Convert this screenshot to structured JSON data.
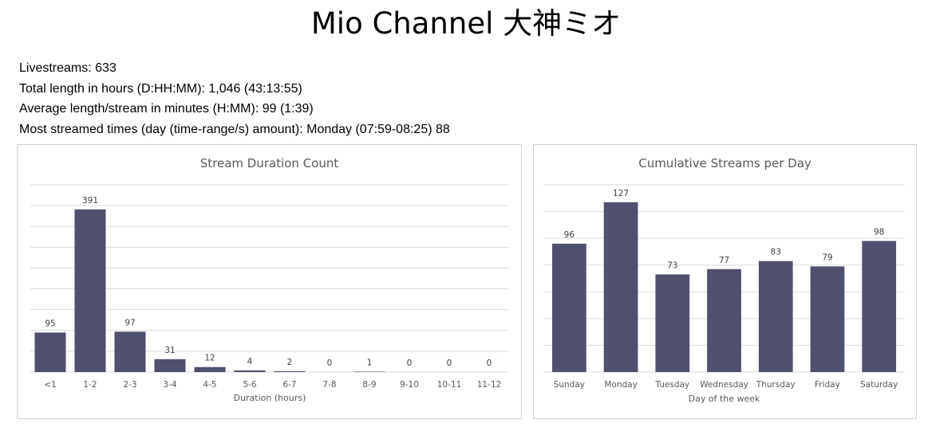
{
  "page": {
    "title": "Mio Channel 大神ミオ"
  },
  "stats": {
    "livestreams": "Livestreams: 633",
    "total_length": "Total length in hours (D:HH:MM): 1,046 (43:13:55)",
    "average_length": "Average length/stream in minutes (H:MM): 99 (1:39)",
    "most_streamed": "Most streamed times (day (time-range/s) amount): Monday (07:59-08:25) 88"
  },
  "colors": {
    "bar": "#4f4f6f",
    "grid": "#d9d9d9",
    "text": "#595959"
  },
  "chart_data": [
    {
      "type": "bar",
      "title": "Stream Duration Count",
      "xlabel": "Duration (hours)",
      "ylabel": "",
      "categories": [
        "<1",
        "1-2",
        "2-3",
        "3-4",
        "4-5",
        "5-6",
        "6-7",
        "7-8",
        "8-9",
        "9-10",
        "10-11",
        "11-12"
      ],
      "values": [
        95,
        391,
        97,
        31,
        12,
        4,
        2,
        0,
        1,
        0,
        0,
        0
      ],
      "ylim": [
        0,
        450
      ],
      "grid": true,
      "data_labels": true
    },
    {
      "type": "bar",
      "title": "Cumulative Streams per Day",
      "xlabel": "Day of the week",
      "ylabel": "",
      "categories": [
        "Sunday",
        "Monday",
        "Tuesday",
        "Wednesday",
        "Thursday",
        "Friday",
        "Saturday"
      ],
      "values": [
        96,
        127,
        73,
        77,
        83,
        79,
        98
      ],
      "ylim": [
        0,
        140
      ],
      "grid": true,
      "data_labels": true
    }
  ]
}
